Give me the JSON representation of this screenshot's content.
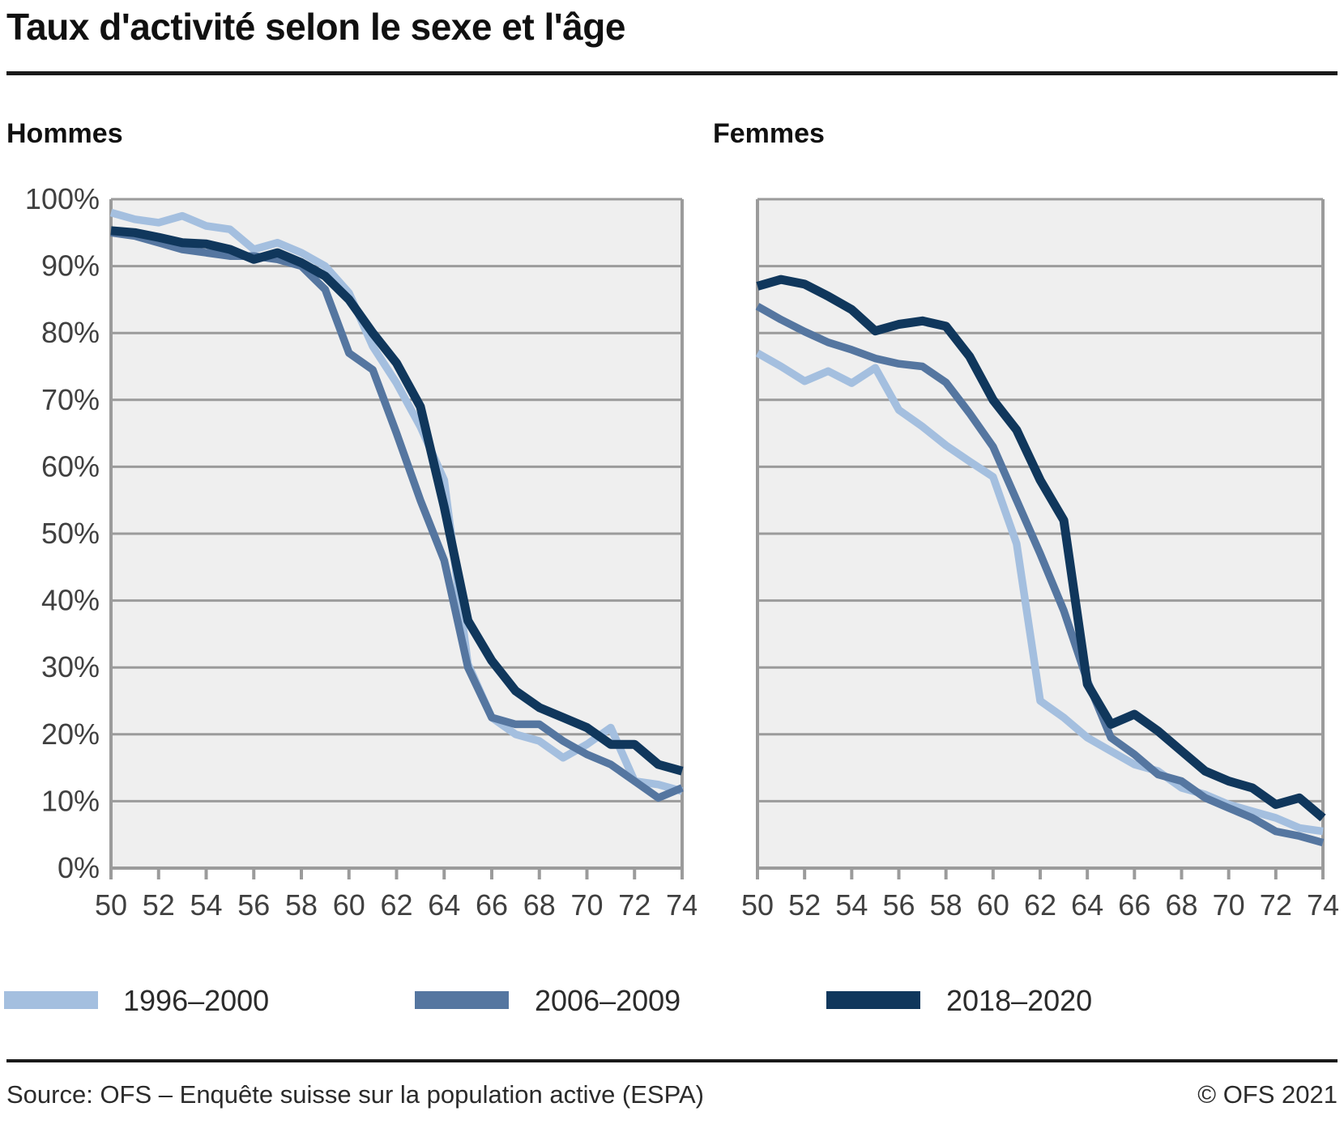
{
  "title": "Taux d'activité selon le sexe et l'âge",
  "panels": {
    "left_title": "Hommes",
    "right_title": "Femmes"
  },
  "footer": {
    "source": "Source: OFS – Enquête suisse sur la population active (ESPA)",
    "copyright": "© OFS 2021"
  },
  "colors": {
    "series_1996_2000": "#a4bfdf",
    "series_2006_2009": "#5576a0",
    "series_2018_2020": "#10375c",
    "plot_background": "#efefef",
    "gridline": "#9b9b9b",
    "text": "#404040",
    "rule": "#1a1a1a"
  },
  "chart_data": [
    {
      "type": "line",
      "title": "Hommes",
      "xlabel": "",
      "ylabel": "",
      "x": [
        50,
        51,
        52,
        53,
        54,
        55,
        56,
        57,
        58,
        59,
        60,
        61,
        62,
        63,
        64,
        65,
        66,
        67,
        68,
        69,
        70,
        71,
        72,
        73,
        74
      ],
      "x_tick_labels": [
        "50",
        "52",
        "54",
        "56",
        "58",
        "60",
        "62",
        "64",
        "66",
        "68",
        "70",
        "72",
        "74"
      ],
      "ylim": [
        0,
        100
      ],
      "y_tick_labels": [
        "100%",
        "90%",
        "80%",
        "70%",
        "60%",
        "50%",
        "40%",
        "30%",
        "20%",
        "10%",
        "0%"
      ],
      "grid": true,
      "legend_position": "bottom",
      "series": [
        {
          "name": "1996–2000",
          "color": "#a4bfdf",
          "values": [
            98,
            97,
            96.5,
            97.5,
            96,
            95.5,
            92.5,
            93.5,
            92,
            90,
            86,
            78,
            72.5,
            66,
            58,
            30.5,
            22.5,
            20,
            19,
            16.5,
            18.5,
            21,
            13,
            12.5,
            11.5
          ]
        },
        {
          "name": "2006–2009",
          "color": "#5576a0",
          "values": [
            95,
            94.5,
            93.5,
            92.5,
            92,
            91.5,
            91.5,
            91,
            90,
            86.5,
            77,
            74.5,
            65,
            55,
            46,
            30,
            22.5,
            21.5,
            21.5,
            19,
            17,
            15.5,
            13,
            10.5,
            12
          ]
        },
        {
          "name": "2018–2020",
          "color": "#10375c",
          "values": [
            95.3,
            95,
            94.3,
            93.5,
            93.3,
            92.5,
            91,
            92,
            90.5,
            88.5,
            85,
            80,
            75.5,
            69,
            54,
            37,
            31,
            26.5,
            24,
            22.5,
            21,
            18.5,
            18.5,
            15.5,
            14.5
          ]
        }
      ]
    },
    {
      "type": "line",
      "title": "Femmes",
      "xlabel": "",
      "ylabel": "",
      "x": [
        50,
        51,
        52,
        53,
        54,
        55,
        56,
        57,
        58,
        59,
        60,
        61,
        62,
        63,
        64,
        65,
        66,
        67,
        68,
        69,
        70,
        71,
        72,
        73,
        74
      ],
      "x_tick_labels": [
        "50",
        "52",
        "54",
        "56",
        "58",
        "60",
        "62",
        "64",
        "66",
        "68",
        "70",
        "72",
        "74"
      ],
      "ylim": [
        0,
        100
      ],
      "y_tick_labels": [
        "100%",
        "90%",
        "80%",
        "70%",
        "60%",
        "50%",
        "40%",
        "30%",
        "20%",
        "10%",
        "0%"
      ],
      "grid": true,
      "legend_position": "bottom",
      "series": [
        {
          "name": "1996–2000",
          "color": "#a4bfdf",
          "values": [
            77,
            75,
            72.8,
            74.3,
            72.5,
            74.8,
            68.5,
            66,
            63.2,
            60.8,
            58.5,
            48.5,
            25,
            22.5,
            19.5,
            17.5,
            15.5,
            14.5,
            12,
            11,
            9.5,
            8.5,
            7.5,
            6,
            5.5
          ]
        },
        {
          "name": "2006–2009",
          "color": "#5576a0",
          "values": [
            84,
            82,
            80.2,
            78.6,
            77.5,
            76.2,
            75.4,
            75,
            72.6,
            68,
            63,
            55,
            47,
            38.5,
            28,
            19.5,
            17,
            14,
            13,
            10.5,
            9,
            7.5,
            5.5,
            4.8,
            3.8
          ]
        },
        {
          "name": "2018–2020",
          "color": "#10375c",
          "values": [
            87,
            88,
            87.3,
            85.5,
            83.5,
            80.3,
            81.3,
            81.8,
            81,
            76.5,
            70,
            65.5,
            58,
            52,
            27.5,
            21.5,
            23,
            20.5,
            17.5,
            14.5,
            13,
            12,
            9.5,
            10.5,
            7.5
          ]
        }
      ]
    }
  ]
}
